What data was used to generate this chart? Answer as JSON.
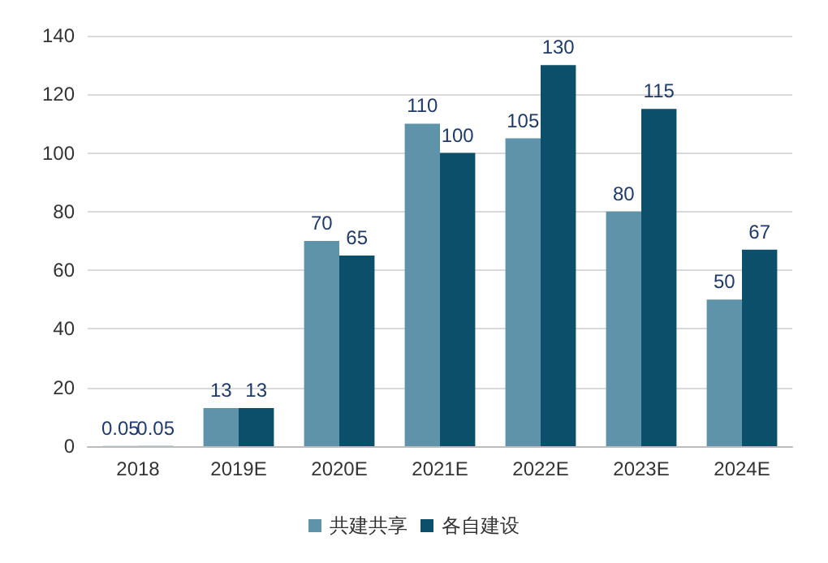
{
  "chart_data": {
    "type": "bar",
    "categories": [
      "2018",
      "2019E",
      "2020E",
      "2021E",
      "2022E",
      "2023E",
      "2024E"
    ],
    "series": [
      {
        "name": "共建共享",
        "color": "#5f93a9",
        "values": [
          0.05,
          13,
          70,
          110,
          105,
          80,
          50
        ]
      },
      {
        "name": "各自建设",
        "color": "#0c4f6b",
        "values": [
          0.05,
          13,
          65,
          100,
          130,
          115,
          67
        ]
      }
    ],
    "ylim": [
      0,
      140
    ],
    "yticks": [
      0,
      20,
      40,
      60,
      80,
      100,
      120,
      140
    ],
    "grid": "y",
    "legend": "bottom",
    "data_labels": true
  }
}
